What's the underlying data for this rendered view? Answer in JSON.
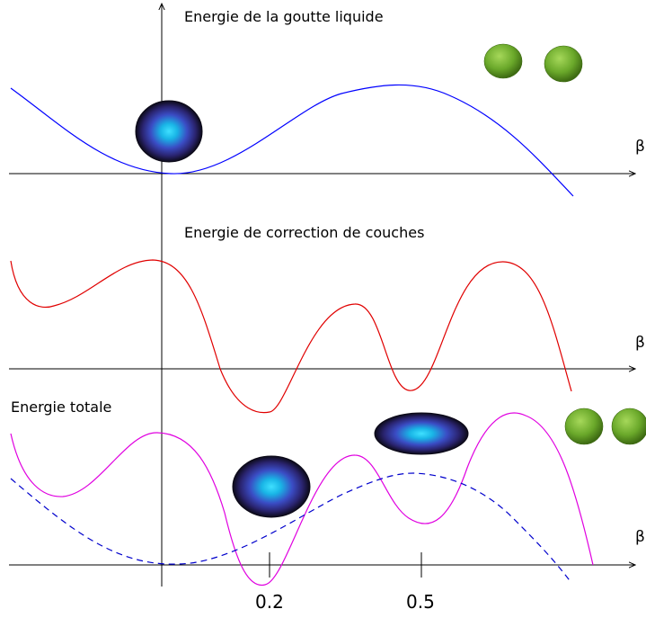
{
  "panels": {
    "top": {
      "title": "Energie de la goutte liquide",
      "axis_label": "β",
      "curve_color": "#0000ff"
    },
    "middle": {
      "title": "Energie de correction de couches",
      "axis_label": "β",
      "curve_color": "#e00000"
    },
    "bottom": {
      "title": "Energie totale",
      "axis_label": "β",
      "curve_color": "#e000e0",
      "dashed_color": "#0000cc"
    }
  },
  "ticks": [
    "0.2",
    "0.5"
  ],
  "icons": {
    "spherical_nucleus": "spherical-nucleus-icon",
    "deformed_nucleus": "deformed-nucleus-icon",
    "fission_fragments": "fission-fragment-icon"
  },
  "colors": {
    "nucleus_outer": "#14102a",
    "nucleus_inner": "#19b5e6",
    "fragment": "#6aa82a"
  }
}
